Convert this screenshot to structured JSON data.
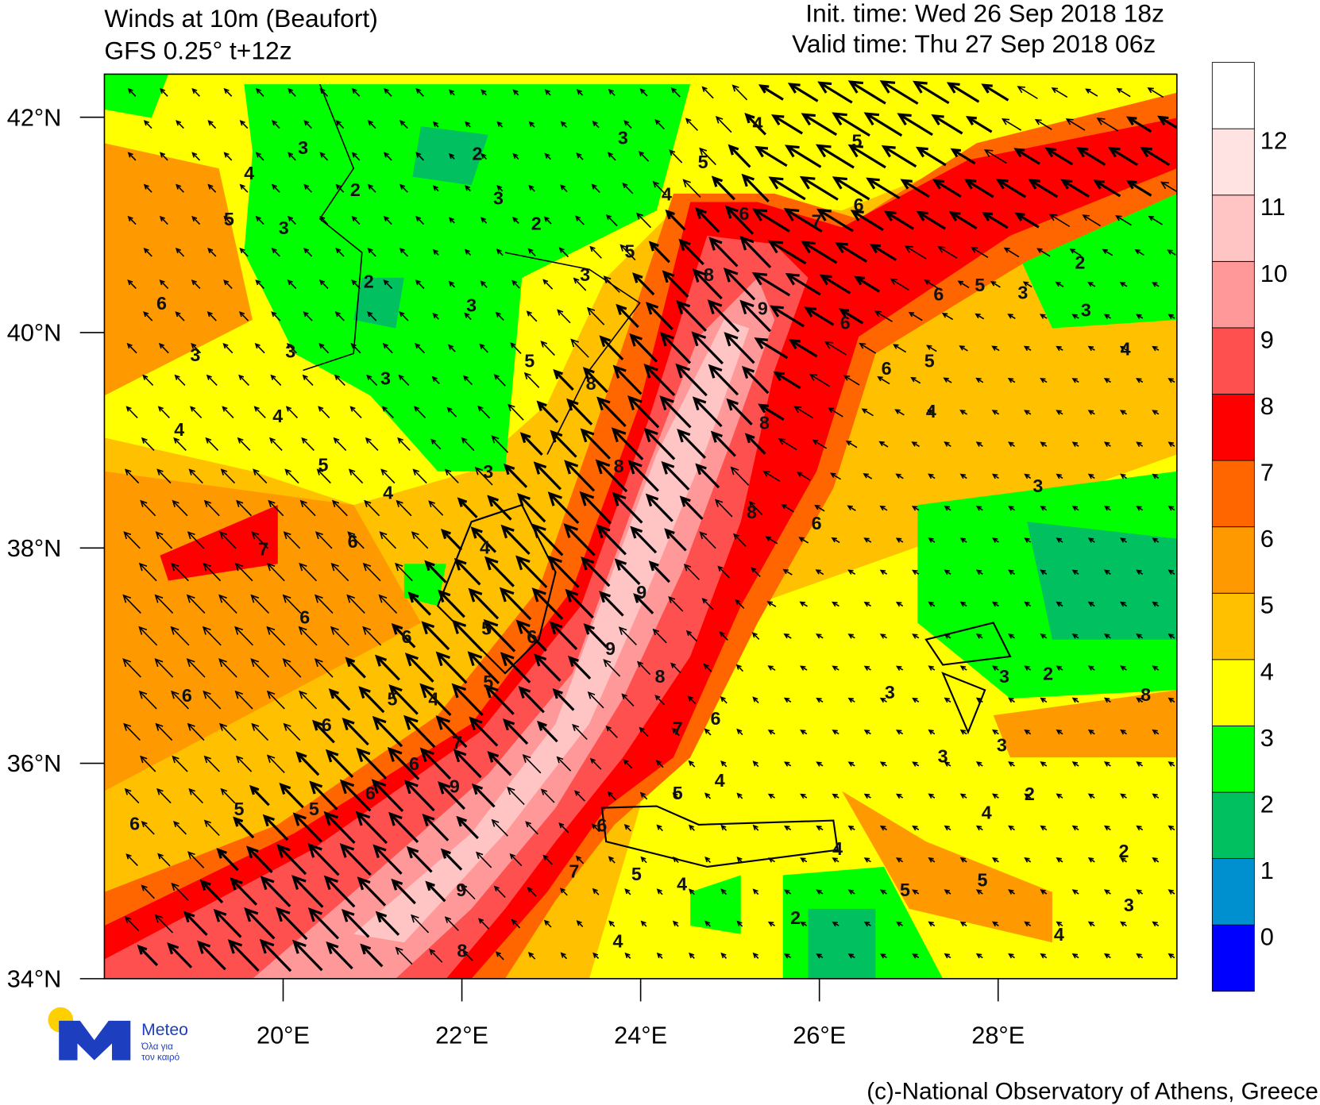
{
  "header": {
    "title": "Winds at 10m (Beaufort)",
    "subtitle": "GFS 0.25° t+12z",
    "init_time": "Init. time: Wed 26 Sep 2018 18z",
    "valid_time": "Valid time: Thu 27 Sep 2018 06z"
  },
  "map": {
    "xlim": [
      18,
      30
    ],
    "ylim": [
      34,
      42.4
    ],
    "xticks": [
      {
        "value": 20,
        "label": "20°E"
      },
      {
        "value": 22,
        "label": "22°E"
      },
      {
        "value": 24,
        "label": "24°E"
      },
      {
        "value": 26,
        "label": "26°E"
      },
      {
        "value": 28,
        "label": "28°E"
      }
    ],
    "yticks": [
      {
        "value": 34,
        "label": "34°N"
      },
      {
        "value": 36,
        "label": "36°N"
      },
      {
        "value": 38,
        "label": "38°N"
      },
      {
        "value": 40,
        "label": "40°N"
      },
      {
        "value": 42,
        "label": "42°N"
      }
    ],
    "contour_labels": [
      3,
      2,
      3,
      4,
      5,
      5,
      2,
      4,
      5,
      3,
      3,
      2,
      4,
      6,
      6,
      7,
      5,
      3,
      8,
      2,
      3,
      6,
      6,
      5,
      3,
      2,
      3,
      9,
      6,
      3,
      3,
      5,
      6,
      5,
      4,
      3,
      8,
      4,
      4,
      8,
      4,
      5,
      3,
      8,
      3,
      4,
      8,
      6,
      6,
      7,
      4,
      9,
      6,
      5,
      6,
      6,
      9,
      3,
      2,
      3,
      4,
      5,
      6,
      5,
      8,
      6,
      6,
      7,
      3,
      3,
      7,
      6,
      4,
      9,
      5,
      6,
      2,
      5,
      5,
      6,
      6,
      4,
      4,
      2,
      7,
      5,
      4,
      5,
      5,
      9,
      3,
      2,
      4,
      4,
      8,
      8
    ]
  },
  "colorbar": {
    "levels": [
      0,
      1,
      2,
      3,
      4,
      5,
      6,
      7,
      8,
      9,
      10,
      11,
      12
    ],
    "colors": [
      "#0000ff",
      "#0090d0",
      "#00c060",
      "#00ff00",
      "#ffff00",
      "#ffc000",
      "#ff9900",
      "#ff6600",
      "#ff0000",
      "#ff5050",
      "#ff9999",
      "#ffc4c4",
      "#ffe2e2",
      "#ffffff"
    ]
  },
  "logo": {
    "name": "Meteo",
    "line1": "Όλα για",
    "line2": "τον καιρό"
  },
  "credit": "(c)-National Observatory of Athens, Greece"
}
